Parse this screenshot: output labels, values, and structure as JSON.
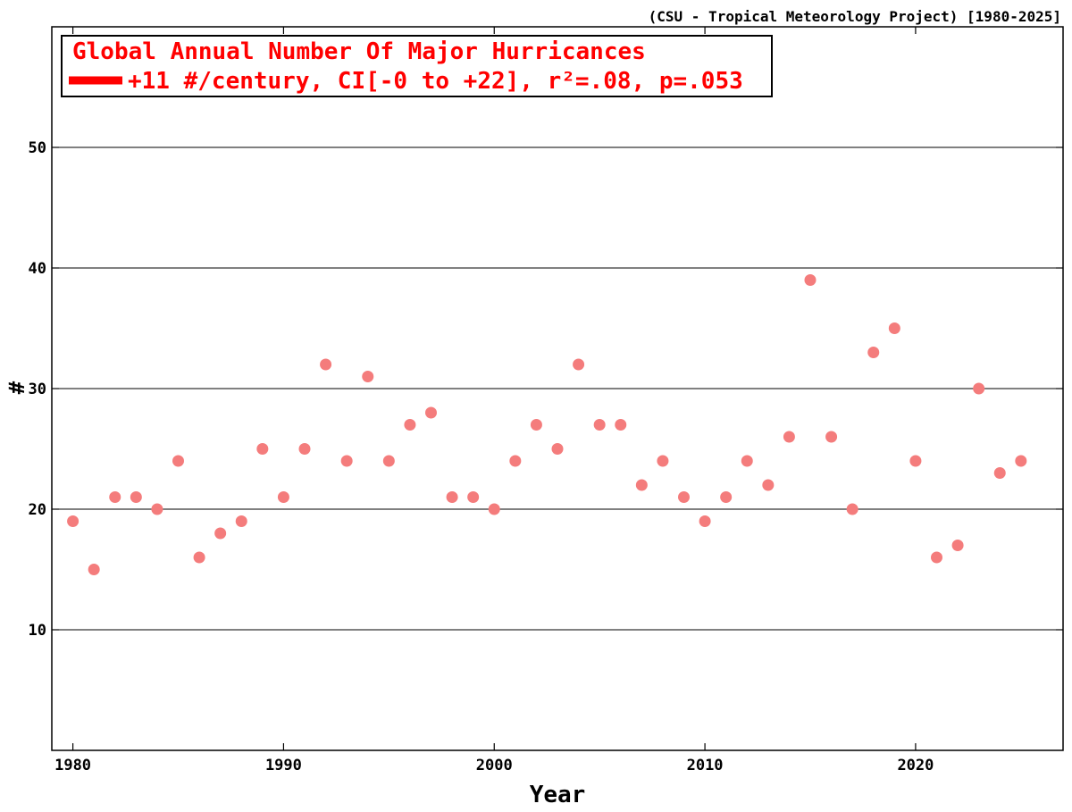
{
  "source_label": "(CSU - Tropical Meteorology Project) [1980-2025]",
  "legend": {
    "title": "Global Annual Number Of Major Hurricances",
    "trend_text": "+11 #/century, CI[-0 to +22], r²=.08, p=.053"
  },
  "colors": {
    "text_red": "#ff0000",
    "marker": "#f47c7c",
    "trend_swatch": "#ff0000",
    "grid": "#000000"
  },
  "chart_data": {
    "type": "scatter",
    "title": "Global Annual Number Of Major Hurricances",
    "xlabel": "Year",
    "ylabel": "#",
    "xlim": [
      1979,
      2027
    ],
    "ylim": [
      0,
      60
    ],
    "xticks": [
      1980,
      1990,
      2000,
      2010,
      2020
    ],
    "yticks": [
      10,
      20,
      30,
      40,
      50
    ],
    "grid": "horizontal",
    "legend_position": "top-left",
    "series": [
      {
        "x": [
          1980,
          1981,
          1982,
          1983,
          1984,
          1985,
          1986,
          1987,
          1988,
          1989,
          1990,
          1991,
          1992,
          1993,
          1994,
          1995,
          1996,
          1997,
          1998,
          1999,
          2000,
          2001,
          2002,
          2003,
          2004,
          2005,
          2006,
          2007,
          2008,
          2009,
          2010,
          2011,
          2012,
          2013,
          2014,
          2015,
          2016,
          2017,
          2018,
          2019,
          2020,
          2021,
          2022,
          2023,
          2024,
          2025
        ],
        "y": [
          19,
          15,
          21,
          21,
          20,
          24,
          16,
          18,
          19,
          25,
          21,
          25,
          32,
          24,
          31,
          24,
          27,
          28,
          21,
          21,
          20,
          24,
          27,
          25,
          32,
          27,
          27,
          22,
          24,
          21,
          19,
          21,
          24,
          22,
          26,
          39,
          26,
          20,
          33,
          35,
          24,
          16,
          17,
          30,
          23,
          24
        ]
      }
    ]
  }
}
